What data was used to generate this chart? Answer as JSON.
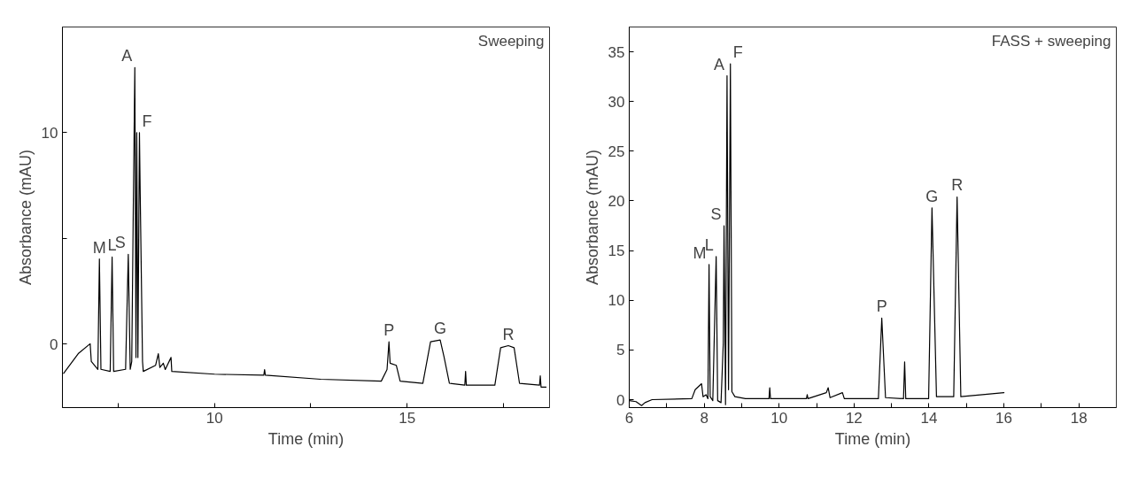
{
  "chart_data": [
    {
      "type": "line",
      "title": "Sweeping",
      "xlabel": "Time (min)",
      "ylabel": "Absorbance (mAU)",
      "grid": false,
      "xlim": [
        6.05,
        18.7
      ],
      "ylim": [
        -3,
        15
      ],
      "xticks": [
        {
          "value": 7.5,
          "label": null
        },
        10,
        {
          "value": 12.5,
          "label": null
        },
        15,
        {
          "value": 17.5,
          "label": null
        }
      ],
      "yticks": [
        0,
        {
          "value": 5,
          "label": null
        },
        10
      ],
      "series": [
        {
          "color": "#000000",
          "x": [
            6.08,
            6.46,
            6.77,
            6.8,
            6.97,
            7.01,
            7.05,
            7.29,
            7.34,
            7.38,
            7.69,
            7.76,
            7.81,
            7.85,
            7.89,
            7.93,
            7.96,
            7.98,
            8.01,
            8.05,
            8.07,
            8.13,
            8.15,
            8.47,
            8.54,
            8.58,
            8.67,
            8.72,
            8.87,
            8.89,
            10.0,
            11.28,
            11.3,
            11.32,
            12.76,
            14.33,
            14.48,
            14.53,
            14.56,
            14.72,
            14.82,
            15.41,
            15.61,
            15.86,
            15.96,
            16.1,
            16.5,
            16.52,
            16.54,
            17.28,
            17.43,
            17.63,
            17.78,
            17.92,
            18.44,
            18.46,
            18.48,
            18.61
          ],
          "values": [
            -1.38,
            -0.45,
            0.02,
            -0.82,
            -1.19,
            4.03,
            -1.19,
            -1.29,
            4.12,
            -1.29,
            -1.19,
            4.25,
            -1.19,
            -0.82,
            6.36,
            13.08,
            -0.63,
            10.0,
            -0.63,
            10.0,
            7.1,
            -0.82,
            -1.29,
            -1.0,
            -0.45,
            -1.1,
            -0.9,
            -1.2,
            -0.63,
            -1.29,
            -1.42,
            -1.47,
            -1.2,
            -1.47,
            -1.66,
            -1.75,
            -1.2,
            0.11,
            -0.9,
            -1.0,
            -1.75,
            -1.85,
            0.11,
            0.2,
            -0.6,
            -1.85,
            -1.94,
            -1.29,
            -1.94,
            -1.94,
            -0.17,
            -0.07,
            -0.17,
            -1.85,
            -1.94,
            -1.5,
            -2.03,
            -2.03
          ]
        }
      ],
      "annotations": [
        {
          "text": "M",
          "x": 7.01,
          "y": 4.03
        },
        {
          "text": "L",
          "x": 7.34,
          "y": 4.12
        },
        {
          "text": "S",
          "x": 7.76,
          "y": 4.25
        },
        {
          "text": "A",
          "x": 7.93,
          "y": 13.08
        },
        {
          "text": "F",
          "x": 8.05,
          "y": 10.0
        },
        {
          "text": "P",
          "x": 14.53,
          "y": 0.11
        },
        {
          "text": "G",
          "x": 15.86,
          "y": 0.2
        },
        {
          "text": "R",
          "x": 17.63,
          "y": -0.07
        }
      ]
    },
    {
      "type": "line",
      "title": "FASS + sweeping",
      "xlabel": "Time (min)",
      "ylabel": "Absorbance (mAU)",
      "grid": false,
      "xlim": [
        6,
        19
      ],
      "ylim": [
        -0.8,
        37.5
      ],
      "xticks": [
        6,
        {
          "value": 7,
          "label": null
        },
        8,
        {
          "value": 9,
          "label": null
        },
        10,
        {
          "value": 11,
          "label": null
        },
        12,
        {
          "value": 13,
          "label": null
        },
        14,
        {
          "value": 15,
          "label": null
        },
        16,
        {
          "value": 17,
          "label": null
        },
        18
      ],
      "yticks": [
        0,
        5,
        10,
        15,
        20,
        25,
        30,
        35
      ],
      "series": [
        {
          "color": "#000000",
          "x": [
            6.0,
            6.18,
            6.33,
            6.42,
            6.61,
            7.67,
            7.76,
            7.93,
            7.97,
            8.05,
            8.1,
            8.13,
            8.16,
            8.23,
            8.32,
            8.36,
            8.45,
            8.51,
            8.53,
            8.57,
            8.61,
            8.65,
            8.7,
            8.74,
            8.82,
            9.1,
            9.73,
            9.75,
            9.77,
            10.73,
            10.75,
            10.77,
            11.26,
            11.31,
            11.36,
            11.69,
            11.74,
            12.65,
            12.74,
            12.84,
            13.32,
            13.35,
            13.38,
            13.99,
            14.08,
            14.2,
            14.66,
            14.75,
            14.85,
            15.43,
            16.0
          ],
          "values": [
            -0.1,
            -0.2,
            -0.6,
            -0.3,
            0,
            0.1,
            1.0,
            1.6,
            0.3,
            0.5,
            0.1,
            13.6,
            0.3,
            -0.1,
            14.4,
            -0.1,
            -0.3,
            5.7,
            17.5,
            -0.5,
            32.6,
            1.0,
            33.8,
            0.8,
            0.3,
            0.1,
            0.1,
            1.2,
            0.1,
            0.1,
            0.5,
            0.1,
            0.7,
            1.2,
            0.2,
            0.7,
            0.1,
            0.1,
            8.2,
            0.2,
            0.1,
            3.8,
            0.1,
            0.1,
            19.3,
            0.3,
            0.3,
            20.4,
            0.3,
            0.5,
            0.7
          ]
        }
      ],
      "annotations": [
        {
          "text": "M",
          "x": 8.13,
          "y": 13.6
        },
        {
          "text": "L",
          "x": 8.32,
          "y": 14.4
        },
        {
          "text": "S",
          "x": 8.53,
          "y": 17.5
        },
        {
          "text": "A",
          "x": 8.61,
          "y": 32.6
        },
        {
          "text": "F",
          "x": 8.7,
          "y": 33.8
        },
        {
          "text": "P",
          "x": 12.74,
          "y": 8.2
        },
        {
          "text": "G",
          "x": 14.08,
          "y": 19.3
        },
        {
          "text": "R",
          "x": 14.75,
          "y": 20.4
        }
      ]
    }
  ]
}
